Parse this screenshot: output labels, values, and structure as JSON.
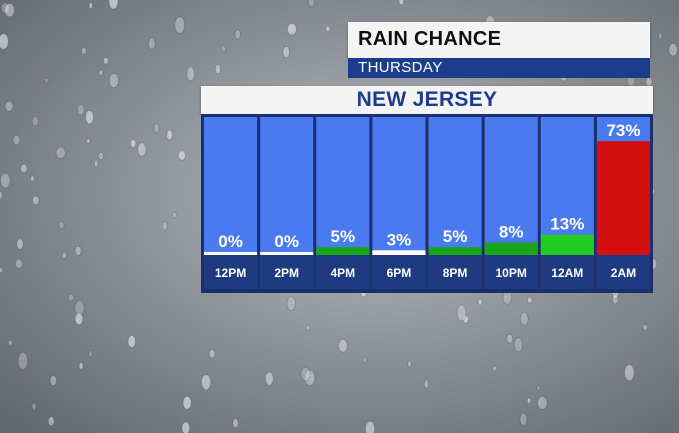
{
  "header": {
    "title": "RAIN CHANCE",
    "day": "THURSDAY",
    "region": "NEW JERSEY"
  },
  "chart_data": {
    "type": "bar",
    "categories": [
      "12PM",
      "2PM",
      "4PM",
      "6PM",
      "8PM",
      "10PM",
      "12AM",
      "2AM"
    ],
    "values": [
      0,
      0,
      5,
      3,
      5,
      8,
      13,
      73
    ],
    "labels": [
      "0%",
      "0%",
      "5%",
      "3%",
      "5%",
      "8%",
      "13%",
      "73%"
    ],
    "bar_colors": [
      "#ffffff",
      "#ffffff",
      "#1aa51a",
      "#ffffff",
      "#1aa51a",
      "#1aa51a",
      "#22cc22",
      "#d40f0f"
    ],
    "ylim": [
      0,
      100
    ]
  },
  "colors": {
    "column_bg": "#4a7aef",
    "panel_bg": "#1c2f6d",
    "axis_band": "#1e3a80",
    "accent": "#1e3c8c",
    "label_text": "#ffffff"
  }
}
